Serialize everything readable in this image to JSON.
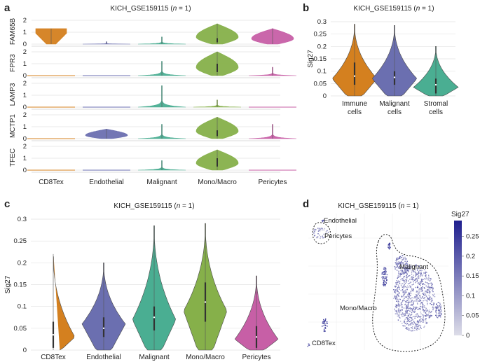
{
  "panels": {
    "a": {
      "letter": "a",
      "title": "KICH_GSE159115 (n = 1)",
      "title_parts": [
        "KICH_GSE159115 (",
        "n",
        " = 1)"
      ]
    },
    "b": {
      "letter": "b",
      "title": "KICH_GSE159115 (n = 1)",
      "title_parts": [
        "KICH_GSE159115 (",
        "n",
        " = 1)"
      ]
    },
    "c": {
      "letter": "c",
      "title": "KICH_GSE159115 (n = 1)",
      "title_parts": [
        "KICH_GSE159115 (",
        "n",
        " = 1)"
      ]
    },
    "d": {
      "letter": "d",
      "title": "KICH_GSE159115 (n = 1)",
      "title_parts": [
        "KICH_GSE159115 (",
        "n",
        " = 1)"
      ]
    }
  },
  "colors": {
    "CD8Tex": "#D4801F",
    "Endothelial": "#6B6FB0",
    "Malignant": "#4AAE92",
    "Mono/Macro": "#86B04A",
    "Pericytes": "#C75FA6",
    "Immune cells": "#D4801F",
    "Malignant cells": "#6B6FB0",
    "Stromal cells": "#4AAE92",
    "umap_high": "#1F1F8E",
    "umap_low": "#DDDDE8",
    "outline": "#222222",
    "grid": "#E2E2E2"
  },
  "chart_data": [
    {
      "id": "a",
      "type": "violin",
      "title": "KICH_GSE159115 (n = 1)",
      "categories": [
        "CD8Tex",
        "Endothelial",
        "Malignant",
        "Mono/Macro",
        "Pericytes"
      ],
      "genes": [
        {
          "name": "FAM65B",
          "yticks": [
            0,
            1,
            2
          ],
          "ylim": [
            0,
            2
          ],
          "max": [
            1.3,
            0.2,
            0.6,
            1.7,
            1.3
          ],
          "peak": [
            1.0,
            0.3,
            0.15,
            0.5,
            0.5
          ]
        },
        {
          "name": "FPR3",
          "yticks": [
            0,
            1,
            2
          ],
          "ylim": [
            0,
            2
          ],
          "max": [
            0.0,
            0.0,
            1.2,
            2.0,
            0.7
          ],
          "peak": [
            0.0,
            0.0,
            0.1,
            1.0,
            0.4
          ]
        },
        {
          "name": "LAMP3",
          "yticks": [
            0,
            1,
            2
          ],
          "ylim": [
            0,
            2
          ],
          "max": [
            0.0,
            0.0,
            1.8,
            0.6,
            0.0
          ],
          "peak": [
            0.0,
            0.0,
            0.2,
            0.15,
            0.0
          ]
        },
        {
          "name": "MCTP1",
          "yticks": [
            0,
            1,
            2
          ],
          "ylim": [
            0,
            2
          ],
          "max": [
            0.0,
            0.8,
            1.2,
            1.8,
            1.2
          ],
          "peak": [
            0.0,
            0.6,
            0.15,
            0.7,
            0.2
          ]
        },
        {
          "name": "TFEC",
          "yticks": [
            0,
            1,
            2
          ],
          "ylim": [
            0,
            2
          ],
          "max": [
            0.0,
            0.0,
            0.8,
            1.7,
            0.0
          ],
          "peak": [
            0.0,
            0.0,
            0.1,
            1.0,
            0.0
          ]
        }
      ]
    },
    {
      "id": "b",
      "type": "violin",
      "title": "KICH_GSE159115 (n = 1)",
      "ylabel": "Sig27",
      "ylim": [
        0,
        0.3
      ],
      "yticks": [
        "0",
        "0.05",
        "0.1",
        "0.15",
        "0.2",
        "0.25",
        "0.3"
      ],
      "categories": [
        [
          "Immune",
          "cells"
        ],
        [
          "Malignant",
          "cells"
        ],
        [
          "Stromal",
          "cells"
        ]
      ],
      "category_keys": [
        "Immune cells",
        "Malignant cells",
        "Stromal cells"
      ],
      "series": [
        {
          "name": "Immune cells",
          "min": 0,
          "max": 0.29,
          "q1": 0.045,
          "median": 0.08,
          "q3": 0.135,
          "mode": 0.07
        },
        {
          "name": "Malignant cells",
          "min": 0,
          "max": 0.285,
          "q1": 0.045,
          "median": 0.075,
          "q3": 0.1,
          "mode": 0.07
        },
        {
          "name": "Stromal cells",
          "min": 0,
          "max": 0.2,
          "q1": 0.01,
          "median": 0.045,
          "q3": 0.07,
          "mode": 0.035
        }
      ]
    },
    {
      "id": "c",
      "type": "violin",
      "title": "KICH_GSE159115 (n = 1)",
      "ylabel": "Sig27",
      "ylim": [
        0,
        0.3
      ],
      "yticks": [
        "0",
        "0.05",
        "0.1",
        "0.15",
        "0.2",
        "0.25",
        "0.3"
      ],
      "categories": [
        "CD8Tex",
        "Endothelial",
        "Malignant",
        "Mono/Macro",
        "Pericytes"
      ],
      "series": [
        {
          "name": "CD8Tex",
          "min": 0,
          "max": 0.22,
          "q1": 0.005,
          "median": 0.035,
          "q3": 0.065,
          "mode": 0.03
        },
        {
          "name": "Endothelial",
          "min": 0,
          "max": 0.2,
          "q1": 0.03,
          "median": 0.05,
          "q3": 0.075,
          "mode": 0.06
        },
        {
          "name": "Malignant",
          "min": 0,
          "max": 0.285,
          "q1": 0.045,
          "median": 0.075,
          "q3": 0.1,
          "mode": 0.07
        },
        {
          "name": "Mono/Macro",
          "min": 0,
          "max": 0.29,
          "q1": 0.065,
          "median": 0.11,
          "q3": 0.155,
          "mode": 0.09
        },
        {
          "name": "Pericytes",
          "min": 0,
          "max": 0.17,
          "q1": 0.005,
          "median": 0.03,
          "q3": 0.055,
          "mode": 0.025
        }
      ]
    },
    {
      "id": "d",
      "type": "scatter",
      "title": "KICH_GSE159115 (n = 1)",
      "colorbar_label": "Sig27",
      "colorbar_ticks": [
        "0",
        "0.05",
        "0.1",
        "0.15",
        "0.2",
        "0.25"
      ],
      "colorbar_range": [
        0,
        0.29
      ],
      "cluster_labels": [
        "Endothelial",
        "Pericytes",
        "Malignant",
        "Mono/Macro",
        "CD8Tex"
      ]
    }
  ]
}
